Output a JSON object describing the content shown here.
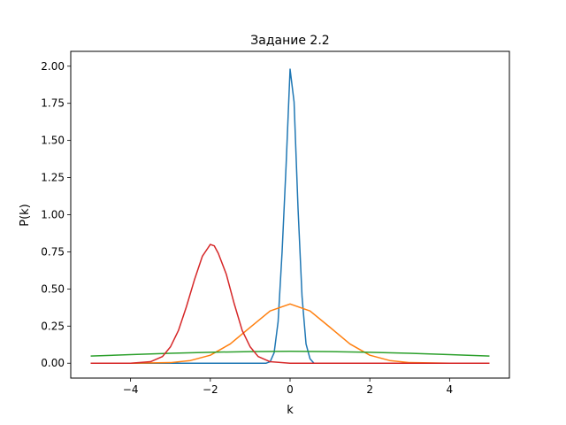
{
  "chart_data": {
    "type": "line",
    "title": "Задание 2.2",
    "xlabel": "k",
    "ylabel": "P(k)",
    "xlim": [
      -5.5,
      5.5
    ],
    "ylim": [
      -0.1,
      2.1
    ],
    "xticks": [
      -4,
      -2,
      0,
      2,
      4
    ],
    "xtick_labels": [
      "−4",
      "−2",
      "0",
      "2",
      "4"
    ],
    "yticks": [
      0.0,
      0.25,
      0.5,
      0.75,
      1.0,
      1.25,
      1.5,
      1.75,
      2.0
    ],
    "ytick_labels": [
      "0.00",
      "0.25",
      "0.50",
      "0.75",
      "1.00",
      "1.25",
      "1.50",
      "1.75",
      "2.00"
    ],
    "grid": false,
    "legend": "none",
    "series": [
      {
        "color": "#1f77b4",
        "x": [
          -5.0,
          -0.6,
          -0.5,
          -0.4,
          -0.3,
          -0.2,
          -0.1,
          0.0,
          0.1,
          0.2,
          0.3,
          0.4,
          0.5,
          0.6
        ],
        "y": [
          0.0,
          0.0,
          0.01,
          0.07,
          0.28,
          0.75,
          1.33,
          1.98,
          1.76,
          1.04,
          0.45,
          0.13,
          0.03,
          0.0
        ]
      },
      {
        "color": "#ff7f0e",
        "x": [
          -5.0,
          -4.0,
          -3.0,
          -2.5,
          -2.0,
          -1.5,
          -1.0,
          -0.5,
          0.0,
          0.5,
          1.0,
          1.5,
          2.0,
          2.5,
          3.0,
          4.0,
          5.0
        ],
        "y": [
          0.0,
          0.0,
          0.004,
          0.018,
          0.054,
          0.13,
          0.242,
          0.352,
          0.399,
          0.352,
          0.242,
          0.13,
          0.054,
          0.018,
          0.004,
          0.0,
          0.0
        ]
      },
      {
        "color": "#2ca02c",
        "x": [
          -5.0,
          -4.0,
          -3.0,
          -2.0,
          -1.0,
          0.0,
          1.0,
          2.0,
          3.0,
          4.0,
          5.0
        ],
        "y": [
          0.048,
          0.058,
          0.067,
          0.074,
          0.078,
          0.08,
          0.078,
          0.074,
          0.067,
          0.058,
          0.048
        ]
      },
      {
        "color": "#d62728",
        "x": [
          -5.0,
          -4.0,
          -3.5,
          -3.2,
          -3.0,
          -2.8,
          -2.6,
          -2.4,
          -2.2,
          -2.1,
          -2.0,
          -1.9,
          -1.8,
          -1.6,
          -1.4,
          -1.2,
          -1.0,
          -0.8,
          -0.5,
          0.0,
          5.0
        ],
        "y": [
          0.0,
          0.0,
          0.01,
          0.045,
          0.11,
          0.22,
          0.38,
          0.56,
          0.72,
          0.76,
          0.8,
          0.79,
          0.74,
          0.6,
          0.4,
          0.22,
          0.11,
          0.045,
          0.01,
          0.0,
          0.0
        ]
      }
    ]
  }
}
